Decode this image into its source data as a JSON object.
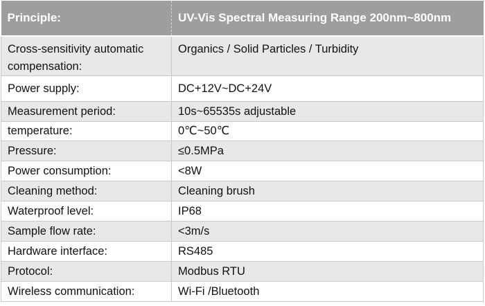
{
  "table": {
    "header": {
      "col1": "Principle:",
      "col2": "UV-Vis Spectral Measuring Range 200nm~800nm"
    },
    "rows": [
      {
        "label": "Cross-sensitivity automatic compensation:",
        "value": "Organics / Solid Particles / Turbidity"
      },
      {
        "label": "Power supply:",
        "value": "DC+12V~DC+24V"
      },
      {
        "label": "Measurement period:",
        "value": "10s~65535s adjustable"
      },
      {
        "label": "temperature:",
        "value": "0℃~50℃"
      },
      {
        "label": "Pressure:",
        "value": "≤0.5MPa"
      },
      {
        "label": "Power consumption:",
        "value": "<8W"
      },
      {
        "label": "Cleaning method:",
        "value": "Cleaning brush"
      },
      {
        "label": "Waterproof level:",
        "value": "IP68"
      },
      {
        "label": "Sample flow rate:",
        "value": "<3m/s"
      },
      {
        "label": "Hardware interface:",
        "value": "RS485"
      },
      {
        "label": "Protocol:",
        "value": "Modbus RTU"
      },
      {
        "label": "Wireless communication:",
        "value": "Wi-Fi /Bluetooth"
      }
    ]
  },
  "colors": {
    "header_bg": "#9e9e9e",
    "header_text": "#ffffff",
    "row_shade": "#e8e8e8",
    "row_plain": "#ffffff",
    "grid": "#c8c8c8"
  }
}
